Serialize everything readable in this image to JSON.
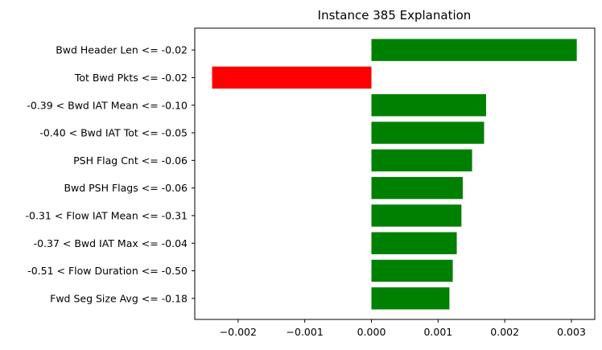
{
  "chart_data": {
    "type": "bar",
    "orientation": "horizontal",
    "title": "Instance 385 Explanation",
    "xlabel": "",
    "ylabel": "",
    "categories": [
      "Bwd Header Len <= -0.02",
      "Tot Bwd Pkts <= -0.02",
      "-0.39 < Bwd IAT Mean <= -0.10",
      "-0.40 < Bwd IAT Tot <= -0.05",
      "PSH Flag Cnt <= -0.06",
      "Bwd PSH Flags <= -0.06",
      "-0.31 < Flow IAT Mean <= -0.31",
      "-0.37 < Bwd IAT Max <= -0.04",
      "-0.51 < Flow Duration <= -0.50",
      "Fwd Seg Size Avg <= -0.18"
    ],
    "values": [
      0.00308,
      -0.00239,
      0.00172,
      0.00169,
      0.00151,
      0.00137,
      0.00135,
      0.00128,
      0.00122,
      0.00117
    ],
    "xlim": [
      -0.00265,
      0.00335
    ],
    "xticks": [
      -0.002,
      -0.001,
      0.0,
      0.001,
      0.002,
      0.003
    ],
    "xtick_labels": [
      "−0.002",
      "−0.001",
      "0.000",
      "0.001",
      "0.002",
      "0.003"
    ],
    "colors": {
      "positive": "#008000",
      "negative": "#ff0000"
    },
    "grid": false,
    "legend": "none"
  }
}
